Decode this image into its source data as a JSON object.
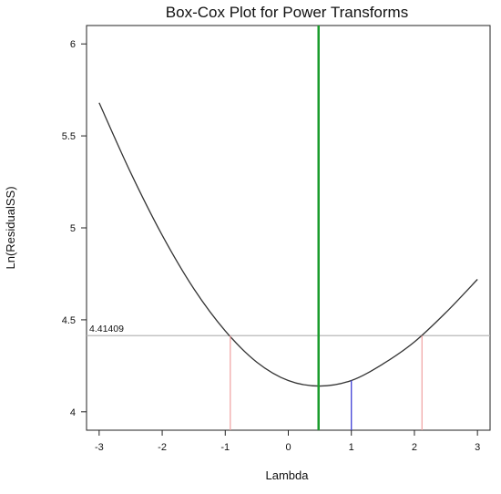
{
  "chart_data": {
    "type": "line",
    "title": "Box-Cox Plot for Power Transforms",
    "xlabel": "Lambda",
    "ylabel": "Ln(ResidualSS)",
    "xlim": [
      -3.2,
      3.2
    ],
    "ylim": [
      3.9,
      6.1
    ],
    "x_ticks": [
      -3,
      -2,
      -1,
      0,
      1,
      2,
      3
    ],
    "x_tick_labels": [
      "-3",
      "-2",
      "-1",
      "0",
      "1",
      "2",
      "3"
    ],
    "y_ticks": [
      4,
      4.5,
      5,
      5.5,
      6
    ],
    "y_tick_labels": [
      "4",
      "4.5",
      "5",
      "5.5",
      "6"
    ],
    "grid": false,
    "curve": {
      "x": [
        -3,
        -2.5,
        -2,
        -1.5,
        -1,
        -0.5,
        0,
        0.5,
        1,
        1.5,
        2,
        2.5,
        3
      ],
      "y": [
        5.68,
        5.3,
        4.96,
        4.67,
        4.44,
        4.27,
        4.17,
        4.14,
        4.17,
        4.26,
        4.38,
        4.54,
        4.72
      ],
      "color": "#333333"
    },
    "reference_line": {
      "y": 4.41409,
      "label": "4.41409",
      "color": "#b8b8b8"
    },
    "best_lambda": {
      "x": 0.48,
      "color": "#1a9c2c"
    },
    "current_lambda": {
      "x": 1,
      "y": 4.17,
      "color": "#3f3fd6"
    },
    "ci_bounds": {
      "low": -0.92,
      "high": 2.12,
      "color": "#f0a0a0"
    }
  }
}
